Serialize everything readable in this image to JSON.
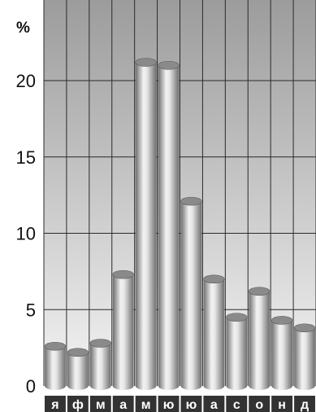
{
  "chart_data": {
    "type": "bar",
    "title": "",
    "ylabel": "%",
    "xlabel": "",
    "categories": [
      "я",
      "ф",
      "м",
      "а",
      "м",
      "ю",
      "ю",
      "а",
      "с",
      "о",
      "н",
      "д"
    ],
    "values": [
      2.6,
      2.2,
      2.8,
      7.3,
      21.2,
      21.0,
      12.1,
      7.0,
      4.5,
      6.2,
      4.3,
      3.8
    ],
    "ylim": [
      0,
      24
    ],
    "yticks": [
      0,
      5,
      10,
      15,
      20
    ],
    "grid": true,
    "colors": {
      "bar_dark": "#6e6e6e",
      "bar_light": "#f2f2f2",
      "bar_top": "#8a8a8a",
      "plot_top": "#9c9c9c",
      "plot_bottom": "#f4f4f4",
      "label_strip": "#333333"
    }
  }
}
